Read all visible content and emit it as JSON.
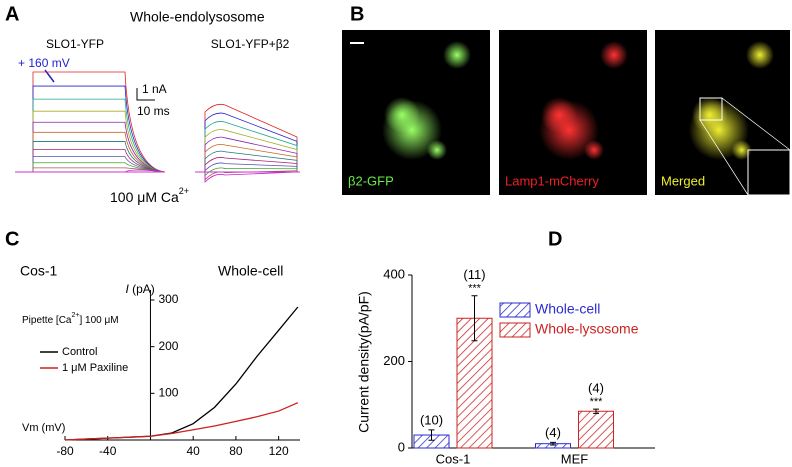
{
  "panels": {
    "a": {
      "letter": "A",
      "title": "Whole-endolysosome",
      "left_label": "SLO1-YFP",
      "right_label": "SLO1-YFP+β2",
      "voltage": "+ 160 mV",
      "scale_current": "1 nA",
      "scale_time": "10 ms",
      "condition": [
        "100 μM Ca",
        "2+"
      ]
    },
    "b": {
      "letter": "B",
      "images": [
        "β2-GFP",
        "Lamp1-mCherry",
        "Merged"
      ]
    }
  },
  "chart_data": [
    {
      "type": "line",
      "letter": "C",
      "cell": "Cos-1",
      "mode": "Whole-cell",
      "ylabel": [
        "I",
        " (pA)"
      ],
      "xlabel": "Vm (mV)",
      "pipette": [
        "Pipette [Ca",
        "2+",
        "] 100 μM"
      ],
      "xlim": [
        -80,
        140
      ],
      "xticks": [
        -80,
        -40,
        40,
        80,
        120
      ],
      "ylim": [
        0,
        300
      ],
      "yticks": [
        100,
        200,
        300
      ],
      "x": [
        -80,
        -60,
        -40,
        -20,
        0,
        20,
        40,
        60,
        80,
        100,
        120,
        138
      ],
      "series": [
        {
          "name": "Control",
          "color": "#000000",
          "values": [
            0,
            2,
            4,
            6,
            8,
            15,
            35,
            70,
            120,
            180,
            235,
            285
          ]
        },
        {
          "name": "1 μM Paxiline",
          "color": "#cc1f1f",
          "values": [
            0,
            2,
            4,
            6,
            8,
            14,
            22,
            30,
            40,
            50,
            62,
            80
          ]
        }
      ]
    },
    {
      "type": "bar",
      "letter": "D",
      "ylabel": "Current density(pA/pF)",
      "categories": [
        "Cos-1",
        "MEF"
      ],
      "ylim": [
        0,
        400
      ],
      "yticks": [
        0,
        200,
        400
      ],
      "series": [
        {
          "name": "Whole-cell",
          "color": "#2b2bd0",
          "values": [
            30,
            10
          ],
          "errors": [
            12,
            3
          ],
          "counts": [
            "(10)",
            "(4)"
          ]
        },
        {
          "name": "Whole-lysosome",
          "color": "#cc2222",
          "values": [
            300,
            85
          ],
          "errors": [
            52,
            5
          ],
          "counts": [
            "(11)",
            "(4)"
          ],
          "stars": [
            "***",
            "***"
          ]
        }
      ]
    }
  ]
}
